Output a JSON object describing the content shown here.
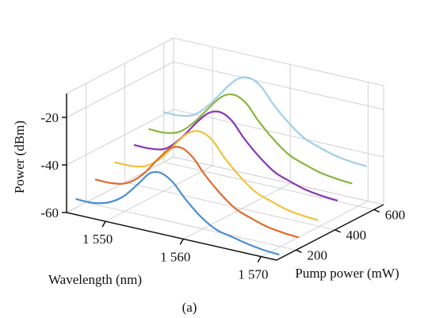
{
  "figure": {
    "caption": "(a)"
  },
  "chart_data": {
    "type": "line",
    "subtype": "3d-waterfall",
    "title": "",
    "xlabel": "Wavelength (nm)",
    "ylabel": "Pump power (mW)",
    "zlabel": "Power (dBm)",
    "x_ticks": [
      "1 550",
      "1 560",
      "1 570"
    ],
    "y_ticks": [
      "200",
      "400",
      "600"
    ],
    "z_ticks": [
      "-20",
      "-40",
      "-60"
    ],
    "xlim": [
      1545,
      1572
    ],
    "ylim": [
      100,
      650
    ],
    "zlim": [
      -60,
      -10
    ],
    "grid": true,
    "legend": "none",
    "series": [
      {
        "pump_power_mW": 150,
        "color": "#4a8fd4",
        "x": [
          1545,
          1547,
          1549,
          1551,
          1553,
          1554.5,
          1556,
          1557.5,
          1559,
          1561,
          1563,
          1565,
          1567,
          1569,
          1571
        ],
        "values": [
          -56.5,
          -56.5,
          -55,
          -51,
          -44,
          -38.5,
          -37.5,
          -40.5,
          -46,
          -52,
          -56,
          -57.5,
          -59,
          -60,
          -60.5
        ]
      },
      {
        "pump_power_mW": 250,
        "color": "#e06a2c",
        "x": [
          1545,
          1547,
          1549,
          1551,
          1553,
          1554.5,
          1556,
          1557.5,
          1559,
          1561,
          1563,
          1565,
          1567,
          1569,
          1571
        ],
        "values": [
          -52.5,
          -52.5,
          -51,
          -46,
          -38,
          -32.5,
          -31,
          -34,
          -40,
          -46.5,
          -51.5,
          -54,
          -56,
          -57,
          -57.5
        ]
      },
      {
        "pump_power_mW": 350,
        "color": "#f2c13a",
        "x": [
          1545,
          1547,
          1549,
          1551,
          1553,
          1554.5,
          1556,
          1557.5,
          1559,
          1561,
          1563,
          1565,
          1567,
          1569,
          1571
        ],
        "values": [
          -49.5,
          -49.5,
          -48,
          -43,
          -35,
          -30,
          -28.5,
          -31,
          -37,
          -43.5,
          -48.5,
          -51,
          -53,
          -54,
          -54.5
        ]
      },
      {
        "pump_power_mW": 450,
        "color": "#8b36b5",
        "x": [
          1545,
          1547,
          1549,
          1551,
          1553,
          1554.5,
          1556,
          1557.5,
          1559,
          1561,
          1563,
          1565,
          1567,
          1569,
          1571
        ],
        "values": [
          -46.5,
          -46.5,
          -45,
          -39,
          -31,
          -26,
          -24.5,
          -27,
          -33,
          -39.5,
          -44.5,
          -47,
          -49,
          -50,
          -50.5
        ]
      },
      {
        "pump_power_mW": 525,
        "color": "#8ab53a",
        "x": [
          1545,
          1547,
          1549,
          1551,
          1553,
          1554.5,
          1556,
          1557.5,
          1559,
          1561,
          1563,
          1565,
          1567,
          1569,
          1571
        ],
        "values": [
          -43,
          -43,
          -41,
          -35,
          -27,
          -22,
          -20.5,
          -23,
          -29,
          -35.5,
          -40.5,
          -43,
          -45,
          -46,
          -46.5
        ]
      },
      {
        "pump_power_mW": 600,
        "color": "#9fcfea",
        "x": [
          1545,
          1547,
          1549,
          1551,
          1553,
          1554.5,
          1556,
          1557.5,
          1559,
          1561,
          1563,
          1565,
          1567,
          1569,
          1571
        ],
        "values": [
          -39,
          -39,
          -37,
          -31,
          -23,
          -18,
          -16.5,
          -19,
          -25,
          -31.5,
          -36.5,
          -39,
          -41,
          -42,
          -42.5
        ]
      }
    ]
  }
}
